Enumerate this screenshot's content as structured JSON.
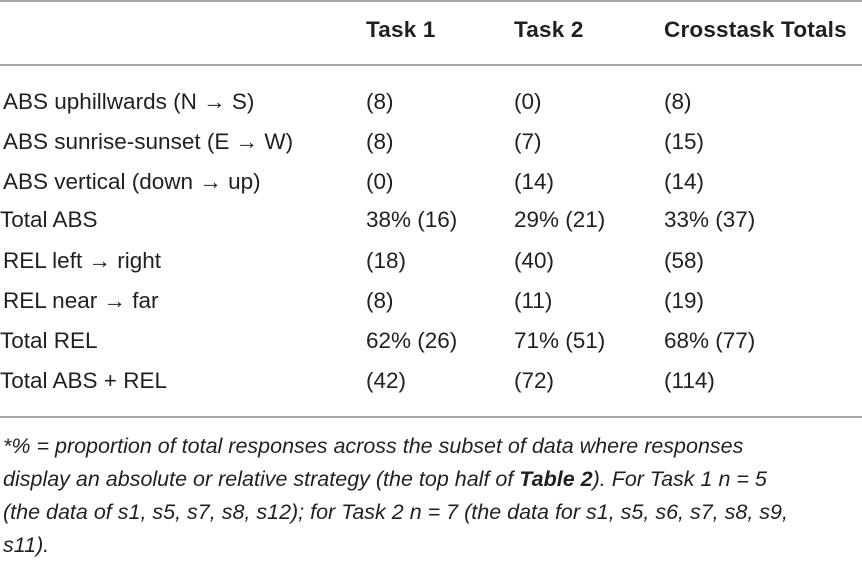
{
  "table": {
    "headers": [
      "Task 1",
      "Task 2",
      "Crosstask Totals"
    ],
    "rows": [
      {
        "label": "ABS uphillwards (N → S)",
        "task1": "(8)",
        "task2": "(0)",
        "total": "(8)"
      },
      {
        "label": "ABS sunrise-sunset (E → W)",
        "task1": "(8)",
        "task2": "(7)",
        "total": "(15)"
      },
      {
        "label": "ABS vertical (down → up)",
        "task1": "(0)",
        "task2": "(14)",
        "total": "(14)"
      },
      {
        "label": "Total ABS",
        "task1": "38% (16)",
        "task2": "29% (21)",
        "total": "33% (37)"
      },
      {
        "label": "REL left → right",
        "task1": "(18)",
        "task2": "(40)",
        "total": "(58)"
      },
      {
        "label": "REL near → far",
        "task1": "(8)",
        "task2": "(11)",
        "total": "(19)"
      },
      {
        "label": "Total REL",
        "task1": "62% (26)",
        "task2": "71% (51)",
        "total": "68% (77)"
      },
      {
        "label": "Total ABS + REL",
        "task1": "(42)",
        "task2": "(72)",
        "total": "(114)"
      }
    ]
  },
  "footnote": {
    "line1": "*% = proportion of total responses across the subset of data where responses",
    "line2_before": "display an absolute or relative strategy (the top half of ",
    "line2_bold": "Table 2",
    "line2_after": "). For Task 1 n = 5",
    "line3": "(the data of s1, s5, s7, s8, s12); for Task 2 n = 7 (the data for s1, s5, s6, s7, s8, s9,",
    "line4": "s11)."
  }
}
